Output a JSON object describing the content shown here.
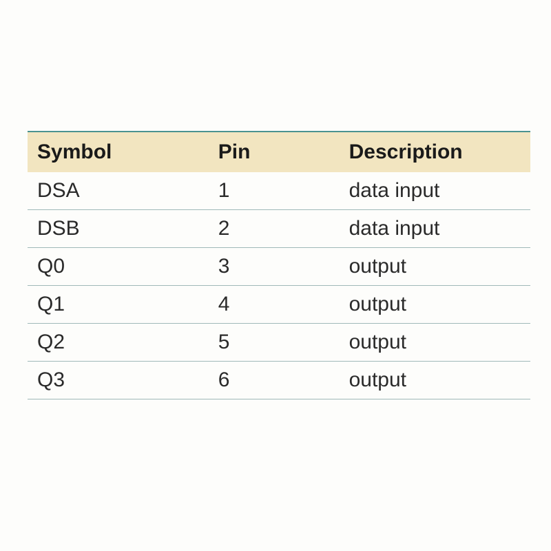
{
  "pin_table": {
    "type": "table",
    "columns": [
      "Symbol",
      "Pin",
      "Description"
    ],
    "column_widths_pct": [
      36,
      26,
      38
    ],
    "rows": [
      [
        "DSA",
        "1",
        "data input"
      ],
      [
        "DSB",
        "2",
        "data input"
      ],
      [
        "Q0",
        "3",
        "output"
      ],
      [
        "Q1",
        "4",
        "output"
      ],
      [
        "Q2",
        "5",
        "output"
      ],
      [
        "Q3",
        "6",
        "output"
      ]
    ],
    "header_bg": "#f2e5c0",
    "header_font_weight": "bold",
    "header_fontsize_pt": 22,
    "cell_fontsize_pt": 22,
    "text_color": "#1a1a1a",
    "border_top_color": "#4a9290",
    "row_border_color": "#9fb8b8",
    "background_color": "#fdfdfb"
  }
}
